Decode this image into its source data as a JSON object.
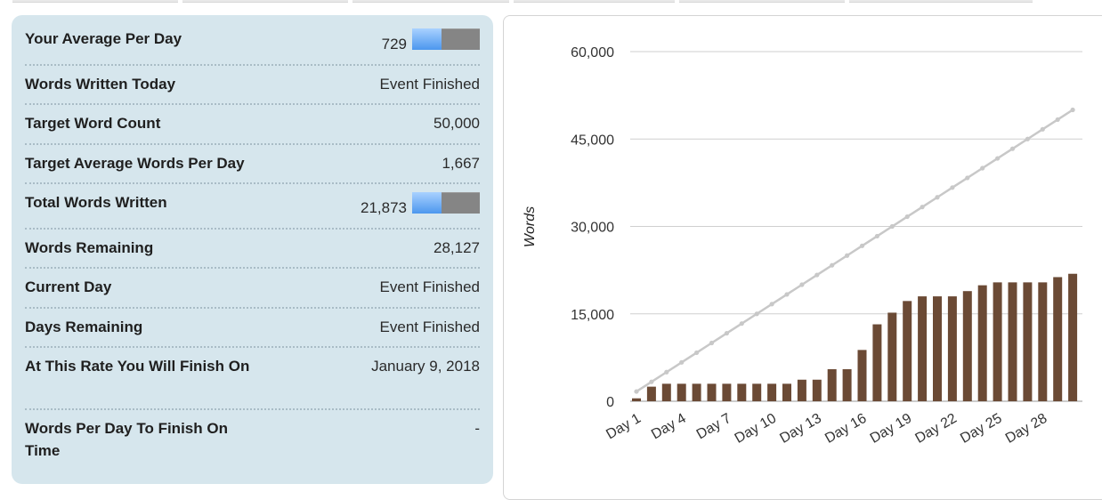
{
  "stats": [
    {
      "key": "avg-per-day",
      "label": "Your Average Per Day",
      "value": "729",
      "bar": 0.437
    },
    {
      "key": "words-today",
      "label": "Words Written Today",
      "value": "Event Finished"
    },
    {
      "key": "target-count",
      "label": "Target Word Count",
      "value": "50,000"
    },
    {
      "key": "target-avg",
      "label": "Target Average Words Per Day",
      "value": "1,667"
    },
    {
      "key": "total-written",
      "label": "Total Words Written",
      "value": "21,873",
      "bar": 0.437
    },
    {
      "key": "words-remaining",
      "label": "Words Remaining",
      "value": "28,127"
    },
    {
      "key": "current-day",
      "label": "Current Day",
      "value": "Event Finished"
    },
    {
      "key": "days-remaining",
      "label": "Days Remaining",
      "value": "Event Finished"
    },
    {
      "key": "finish-date",
      "label": "At This Rate You Will Finish On",
      "value": "January 9, 2018"
    },
    {
      "key": "words-per-day-needed",
      "label": "Words Per Day To Finish On Time",
      "value": "-"
    }
  ],
  "colors": {
    "panel_bg": "#d6e6ed",
    "bar_color": "#6b4a35",
    "target_line": "#c8c8c8",
    "progress_fill": "#4c97ee",
    "progress_track": "#858585"
  },
  "chart_data": {
    "type": "bar",
    "title": "",
    "xlabel": "",
    "ylabel": "Words",
    "ylim": [
      0,
      60000
    ],
    "yticks": [
      0,
      15000,
      30000,
      45000,
      60000
    ],
    "ytick_labels": [
      "0",
      "15,000",
      "30,000",
      "45,000",
      "60,000"
    ],
    "xtick_labels": [
      "Day 1",
      "Day 4",
      "Day 7",
      "Day 10",
      "Day 13",
      "Day 16",
      "Day 19",
      "Day 22",
      "Day 25",
      "Day 28"
    ],
    "grid": true,
    "categories": [
      "Day 1",
      "Day 2",
      "Day 3",
      "Day 4",
      "Day 5",
      "Day 6",
      "Day 7",
      "Day 8",
      "Day 9",
      "Day 10",
      "Day 11",
      "Day 12",
      "Day 13",
      "Day 14",
      "Day 15",
      "Day 16",
      "Day 17",
      "Day 18",
      "Day 19",
      "Day 20",
      "Day 21",
      "Day 22",
      "Day 23",
      "Day 24",
      "Day 25",
      "Day 26",
      "Day 27",
      "Day 28",
      "Day 29",
      "Day 30"
    ],
    "series": [
      {
        "type": "bar",
        "values": [
          500,
          2500,
          3000,
          3000,
          3000,
          3000,
          3000,
          3000,
          3000,
          3000,
          3000,
          3700,
          3700,
          5500,
          5500,
          8800,
          13200,
          15200,
          17200,
          18000,
          18000,
          18000,
          18900,
          19900,
          20400,
          20400,
          20400,
          20400,
          21300,
          21873
        ]
      },
      {
        "type": "line",
        "values": [
          1667,
          3333,
          5000,
          6667,
          8333,
          10000,
          11667,
          13333,
          15000,
          16667,
          18333,
          20000,
          21667,
          23333,
          25000,
          26667,
          28333,
          30000,
          31667,
          33333,
          35000,
          36667,
          38333,
          40000,
          41667,
          43333,
          45000,
          46667,
          48333,
          50000
        ]
      }
    ]
  }
}
